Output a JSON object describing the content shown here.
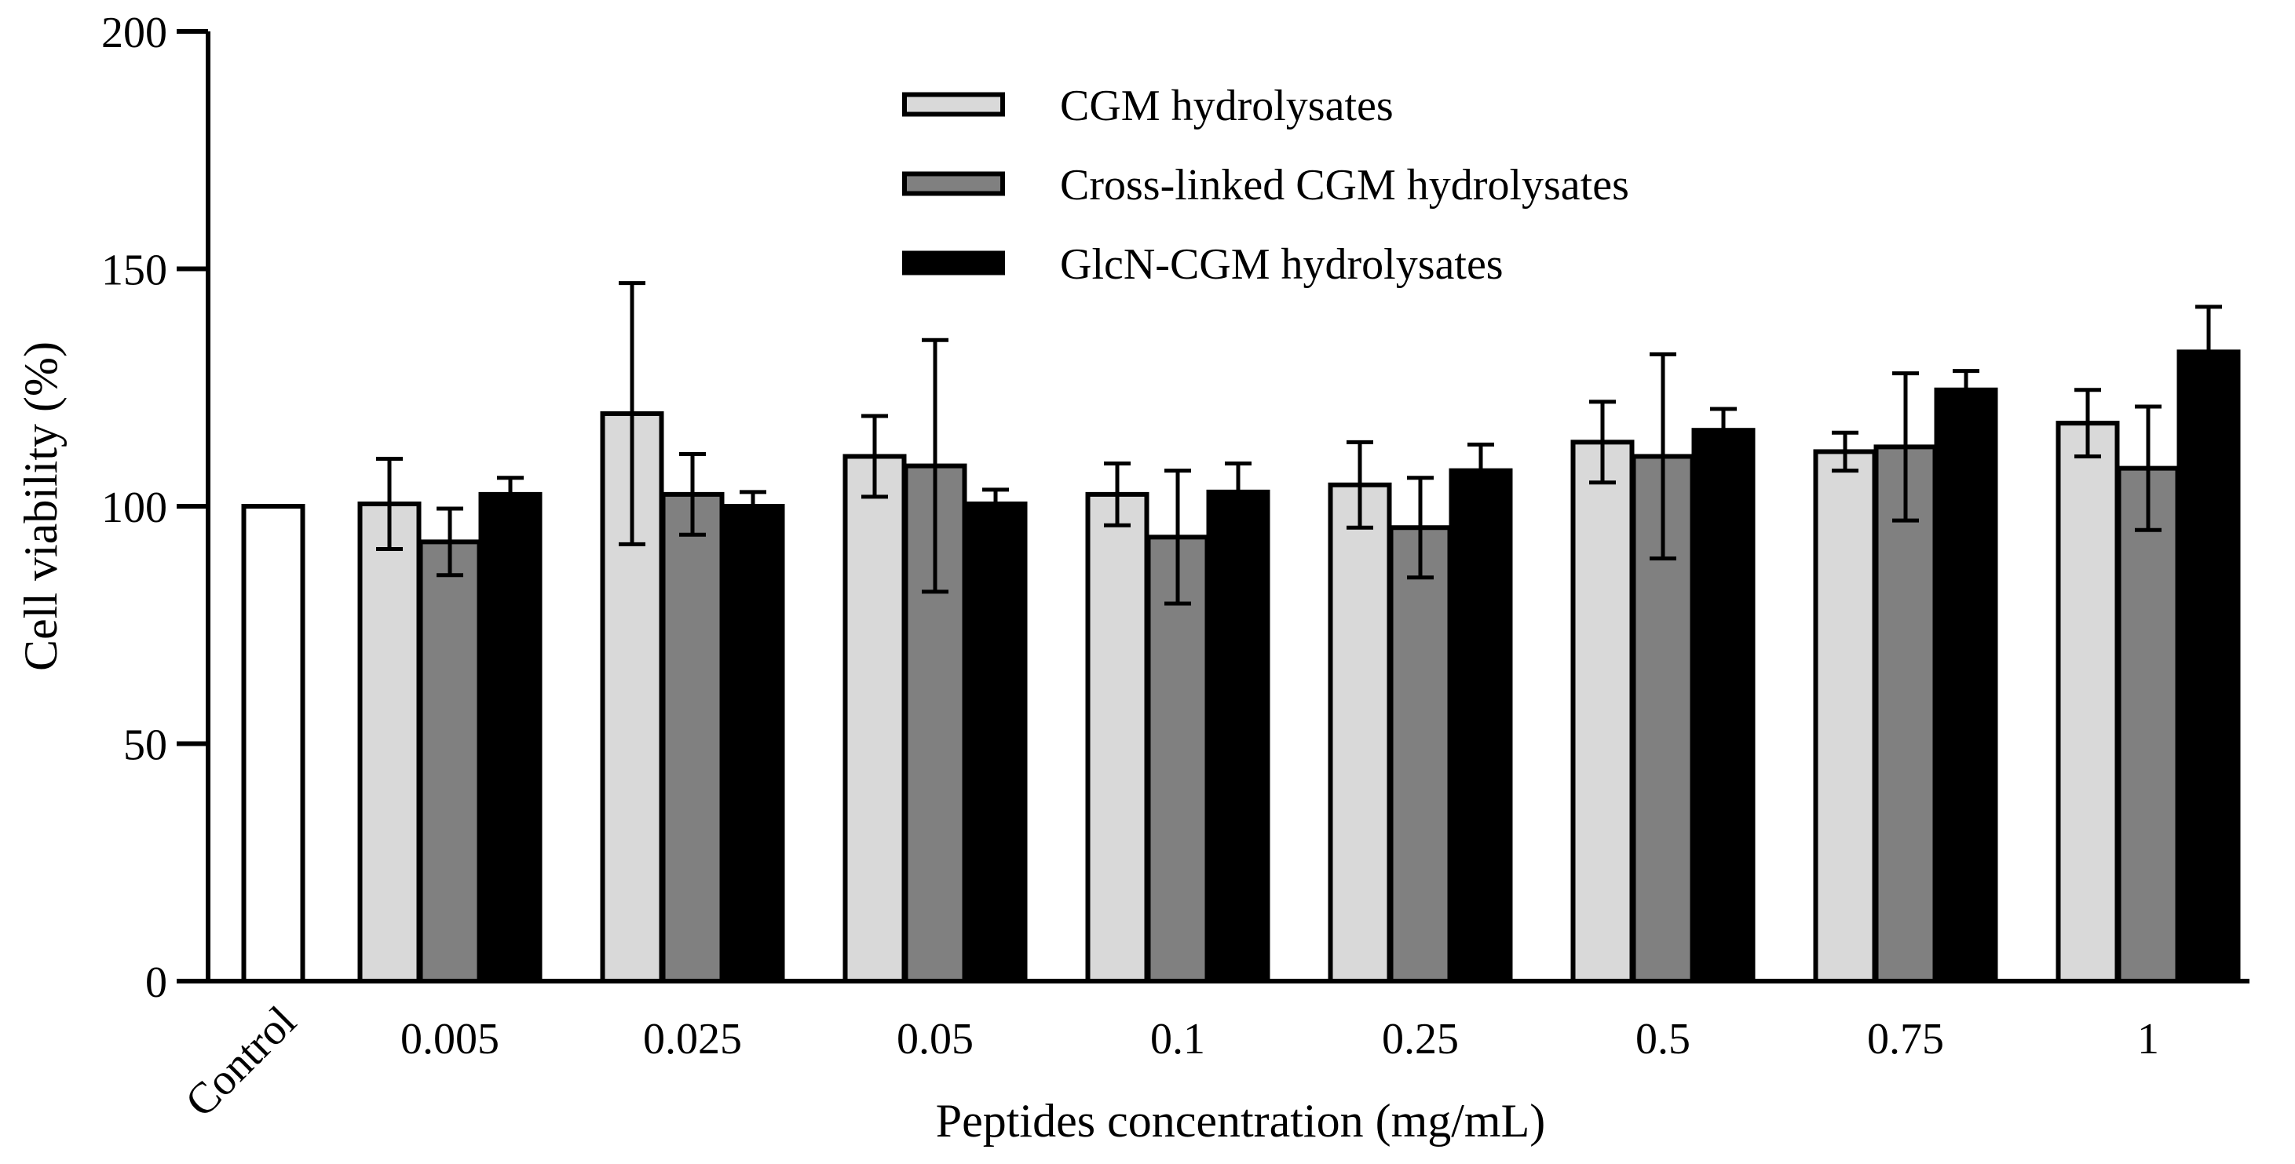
{
  "chart_data": {
    "type": "bar",
    "title": "",
    "xlabel": "Peptides concentration (mg/mL)",
    "ylabel": "Cell viability (%)",
    "ylim": [
      0,
      200
    ],
    "yticks": [
      "0",
      "50",
      "100",
      "150",
      "200"
    ],
    "categories": [
      "Control",
      "0.005",
      "0.025",
      "0.05",
      "0.1",
      "0.25",
      "0.5",
      "0.75",
      "1"
    ],
    "control": {
      "name": "Control",
      "value": 100,
      "color": "#ffffff"
    },
    "series": [
      {
        "name": "CGM hydrolysates",
        "color": "#d9d9d9",
        "values": [
          null,
          100.5,
          119.5,
          110.5,
          102.5,
          104.5,
          113.5,
          111.5,
          117.5
        ],
        "errors": [
          null,
          9.5,
          27.5,
          8.5,
          6.5,
          9.0,
          8.5,
          4.0,
          7.0
        ]
      },
      {
        "name": "Cross-linked CGM hydrolysates",
        "color": "#808080",
        "values": [
          null,
          92.5,
          102.5,
          108.5,
          93.5,
          95.5,
          110.5,
          112.5,
          108.0
        ],
        "errors": [
          null,
          7.0,
          8.5,
          26.5,
          14.0,
          10.5,
          21.5,
          15.5,
          13.0
        ]
      },
      {
        "name": "GlcN-CGM hydrolysates",
        "color": "#000000",
        "values": [
          null,
          102.5,
          100.0,
          100.5,
          103.0,
          107.5,
          116.0,
          124.5,
          132.5
        ],
        "errors": [
          null,
          3.5,
          3.0,
          3.0,
          6.0,
          5.5,
          4.5,
          4.0,
          9.5
        ]
      }
    ],
    "legend": {
      "position": "top-center",
      "entries": [
        "CGM hydrolysates",
        "Cross-linked CGM hydrolysates",
        "GlcN-CGM hydrolysates"
      ]
    }
  }
}
